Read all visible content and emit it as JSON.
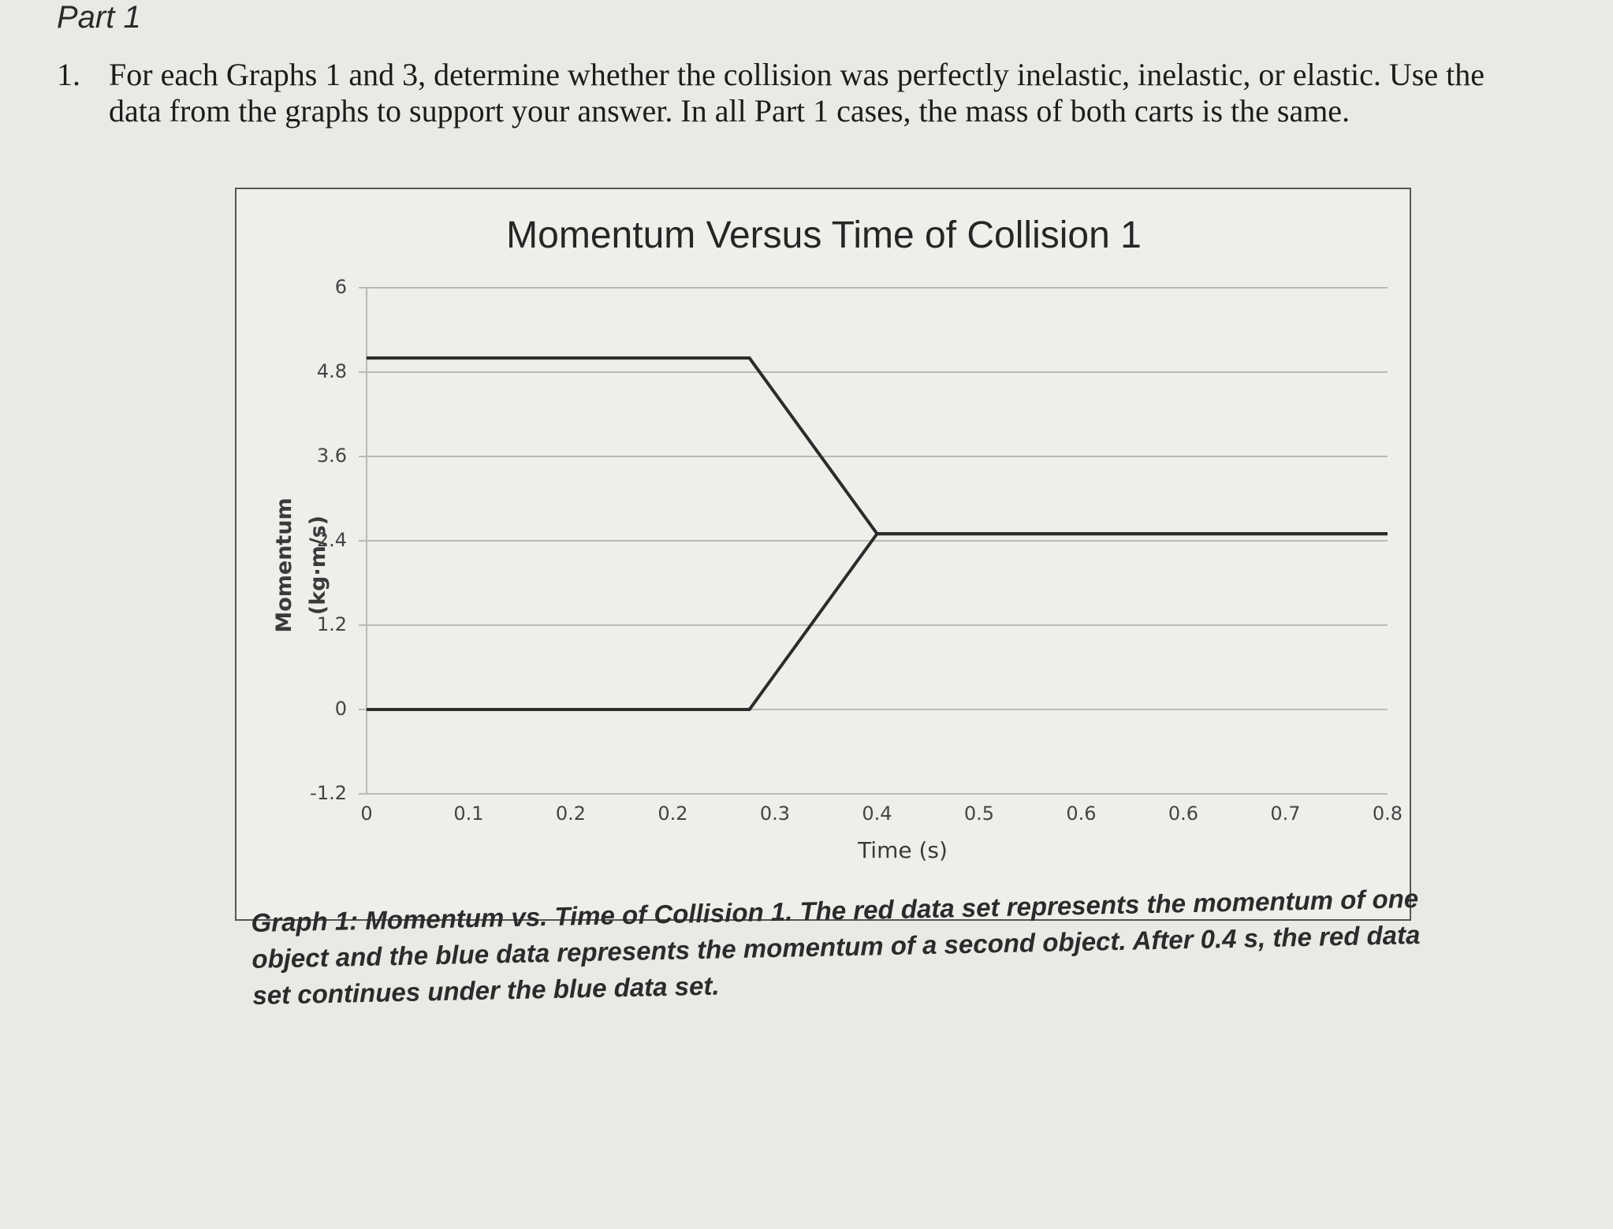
{
  "page": {
    "part_heading": "Part 1",
    "question_number": "1.",
    "question_text": "For each Graphs 1 and 3, determine whether the collision was perfectly inelastic, inelastic, or elastic. Use the data from the graphs to support your answer.  In all Part 1 cases, the mass of both carts is the same.",
    "caption": "Graph 1: Momentum vs. Time of Collision 1. The red data set represents the momentum of one object and the blue data represents the momentum of a second object. After 0.4 s, the red data set continues under the blue data set."
  },
  "colors": {
    "line": "#2b2b2b",
    "grid": "#b9b9b9",
    "axis_text": "#444444"
  },
  "chart_data": {
    "type": "line",
    "title": "Momentum Versus Time of Collision 1",
    "xlabel": "Time (s)",
    "ylabel_lines": [
      "Momentum",
      "(kg·m/s)"
    ],
    "x_tick_labels": [
      "0",
      "0.1",
      "0.2",
      "0.2",
      "0.3",
      "0.4",
      "0.5",
      "0.6",
      "0.6",
      "0.7",
      "0.8"
    ],
    "y_ticks": [
      6,
      4.8,
      3.6,
      2.4,
      1.2,
      0,
      -1.2
    ],
    "y_tick_labels": [
      "6",
      "4.8",
      "3.6",
      "2.4",
      "1.2",
      "0",
      "-1.2"
    ],
    "ylim": [
      -1.2,
      6
    ],
    "xlim": [
      0,
      0.8
    ],
    "grid": true,
    "series": [
      {
        "x": [
          0,
          0.3,
          0.4,
          0.8
        ],
        "y": [
          5.0,
          5.0,
          2.5,
          2.5
        ]
      },
      {
        "x": [
          0,
          0.3,
          0.4,
          0.8
        ],
        "y": [
          0,
          0,
          2.5,
          2.5
        ]
      }
    ]
  }
}
